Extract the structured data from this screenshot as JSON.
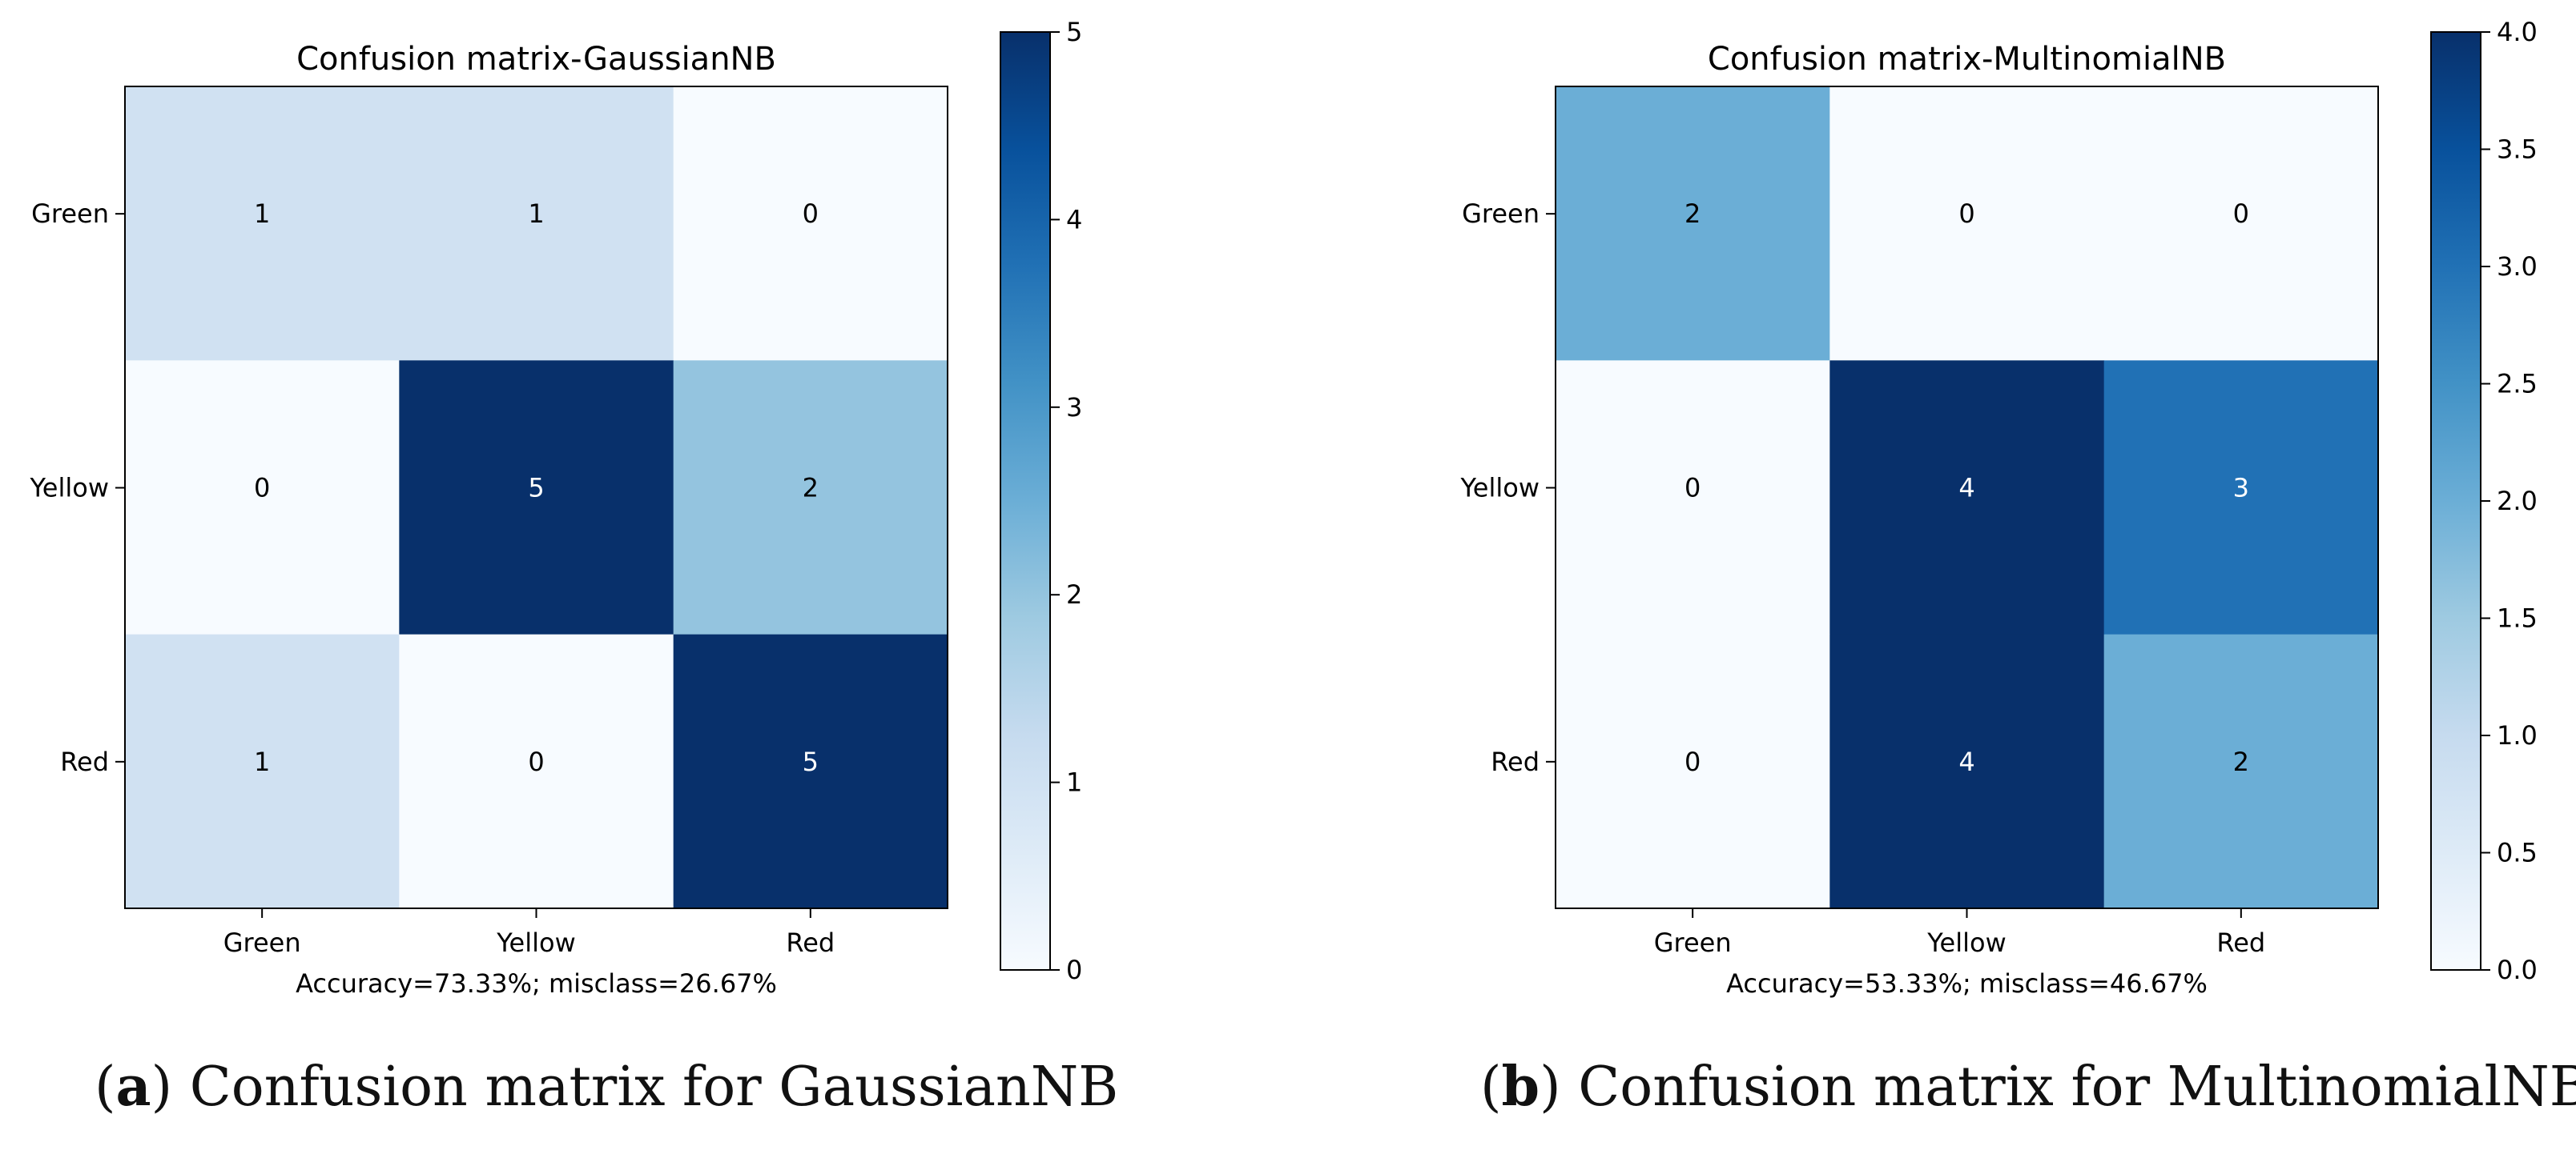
{
  "chart_data": [
    {
      "type": "heatmap",
      "title": "Confusion matrix-GaussianNB",
      "row_labels": [
        "Green",
        "Yellow",
        "Red"
      ],
      "col_labels": [
        "Green",
        "Yellow",
        "Red"
      ],
      "values": [
        [
          1,
          1,
          0
        ],
        [
          0,
          5,
          2
        ],
        [
          1,
          0,
          5
        ]
      ],
      "xlabel": "Accuracy=73.33%; misclass=26.67%",
      "colormap": "Blues",
      "vmin": 0,
      "vmax": 5,
      "colorbar_ticks": [
        "0",
        "1",
        "2",
        "3",
        "4",
        "5"
      ],
      "caption_letter": "a",
      "caption_text": " Confusion matrix for GaussianNB"
    },
    {
      "type": "heatmap",
      "title": "Confusion matrix-MultinomialNB",
      "row_labels": [
        "Green",
        "Yellow",
        "Red"
      ],
      "col_labels": [
        "Green",
        "Yellow",
        "Red"
      ],
      "values": [
        [
          2,
          0,
          0
        ],
        [
          0,
          4,
          3
        ],
        [
          0,
          4,
          2
        ]
      ],
      "xlabel": "Accuracy=53.33%; misclass=46.67%",
      "colormap": "Blues",
      "vmin": 0,
      "vmax": 4,
      "colorbar_ticks": [
        "0.0",
        "0.5",
        "1.0",
        "1.5",
        "2.0",
        "2.5",
        "3.0",
        "3.5",
        "4.0"
      ],
      "caption_letter": "b",
      "caption_text": " Confusion matrix for MultinomialNB"
    }
  ]
}
